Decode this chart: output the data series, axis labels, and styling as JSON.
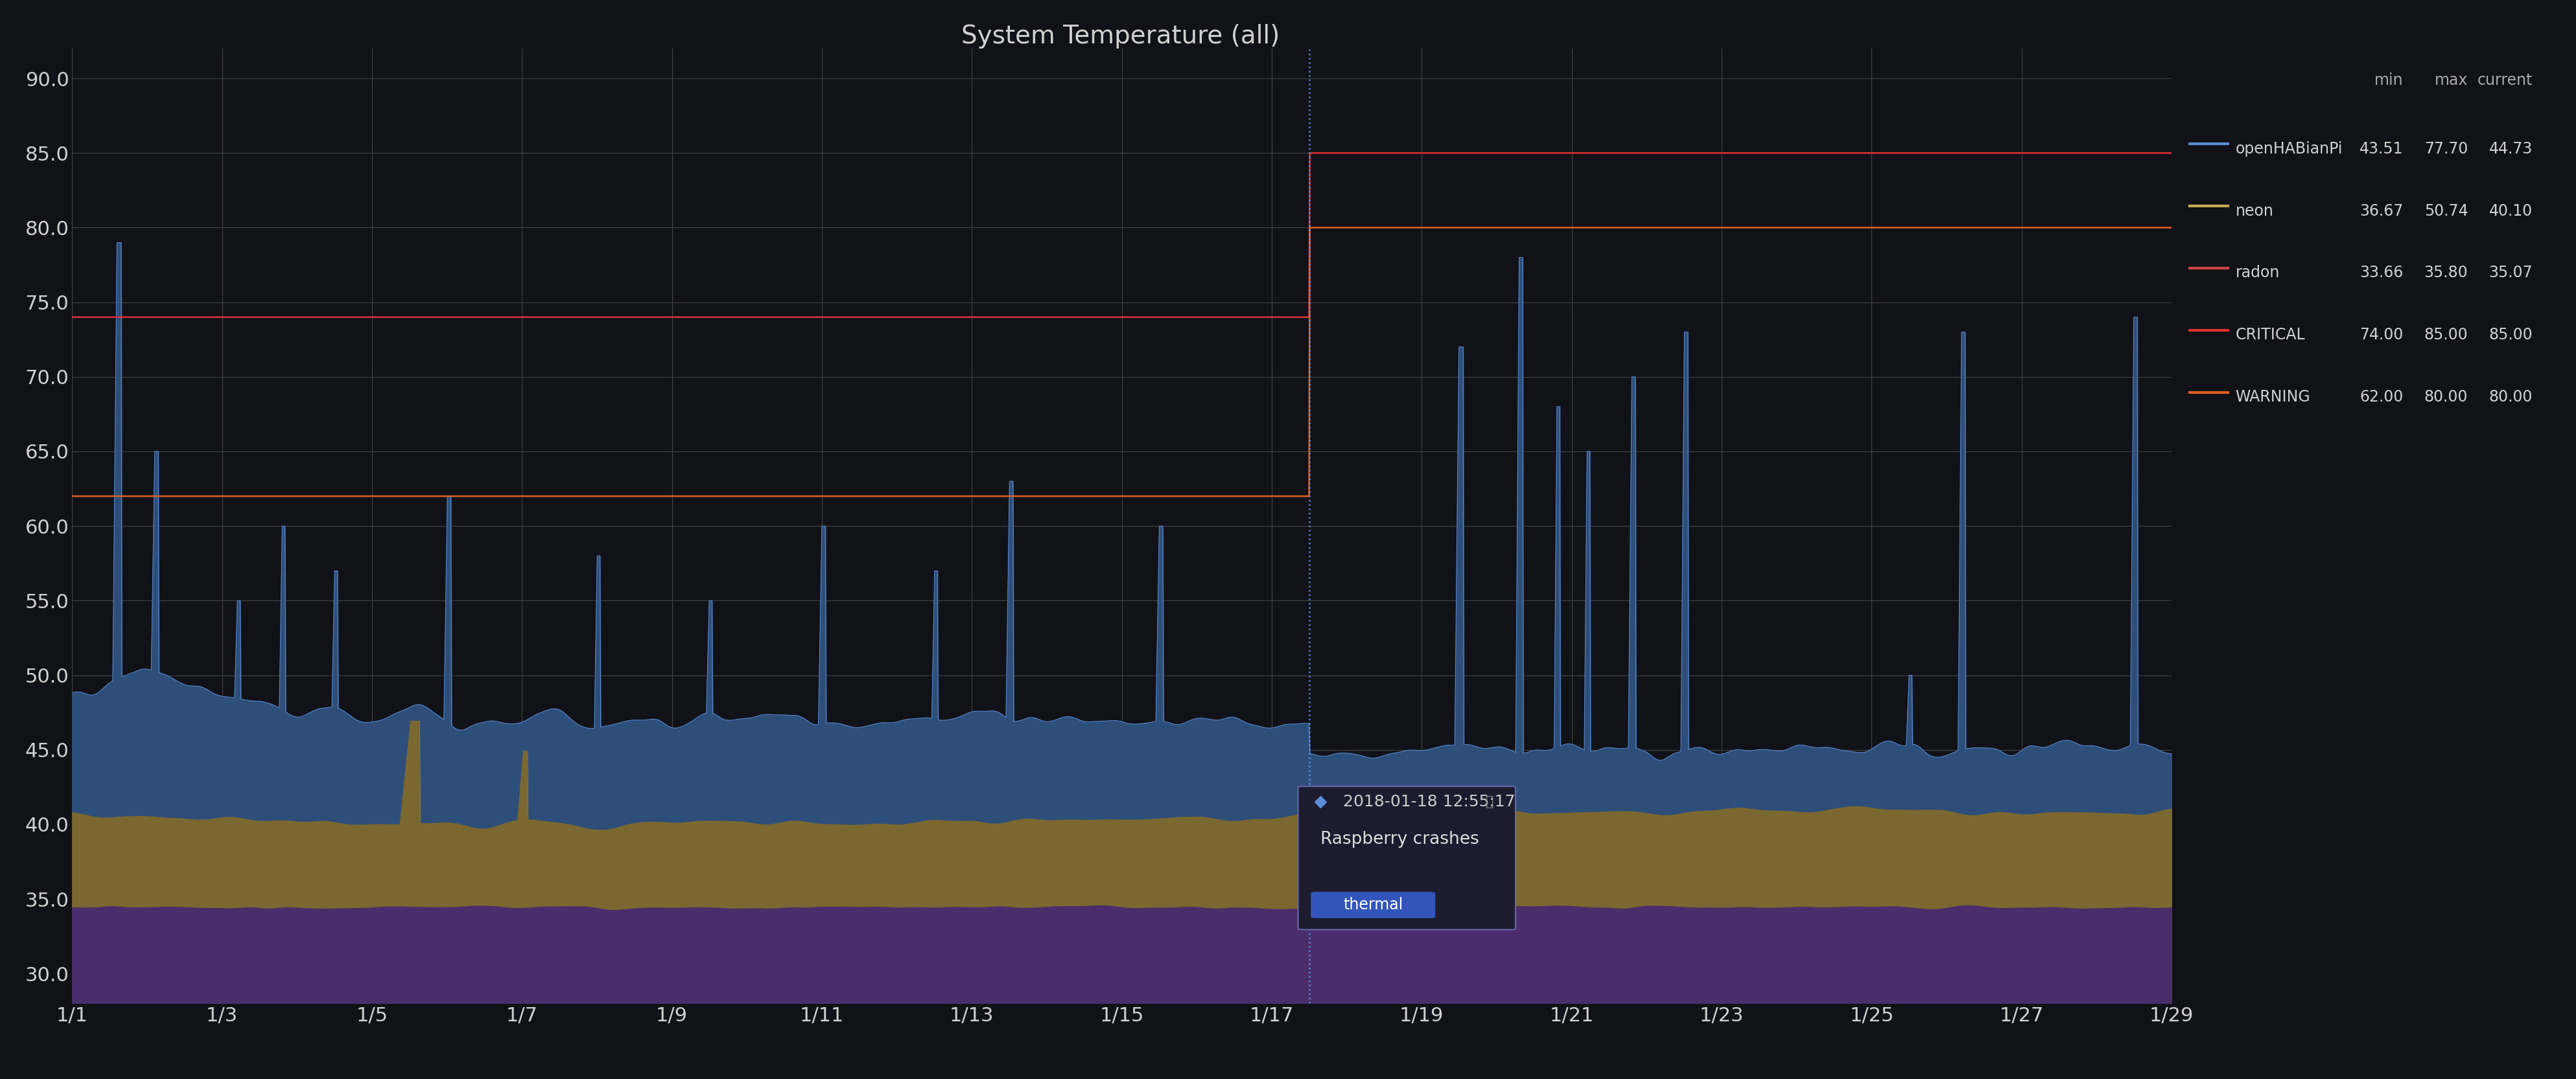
{
  "title": "System Temperature (all)",
  "bg_color": "#111217",
  "plot_bg_color": "#111217",
  "grid_color": "#444444",
  "text_color": "#d0d0d0",
  "ylim": [
    28,
    92
  ],
  "yticks": [
    30.0,
    35.0,
    40.0,
    45.0,
    50.0,
    55.0,
    60.0,
    65.0,
    70.0,
    75.0,
    80.0,
    85.0,
    90.0
  ],
  "xlim": [
    0,
    28
  ],
  "xtick_labels": [
    "1/1",
    "1/3",
    "1/5",
    "1/7",
    "1/9",
    "1/11",
    "1/13",
    "1/15",
    "1/17",
    "1/19",
    "1/21",
    "1/23",
    "1/25",
    "1/27",
    "1/29"
  ],
  "xtick_positions": [
    0,
    2,
    4,
    6,
    8,
    10,
    12,
    14,
    16,
    18,
    20,
    22,
    24,
    26,
    28
  ],
  "vline_x": 16.5,
  "vline_color": "#5599ff",
  "critical_level_before": 74.0,
  "critical_level_after": 85.0,
  "warning_level_before": 62.0,
  "warning_level_after": 80.0,
  "critical_color": "#e03030",
  "warning_color": "#e06020",
  "openhabianpi_color": "#5b8dd9",
  "openhabianpi_fill": "#3a5a9a",
  "neon_color": "#c8aa50",
  "neon_fill": "#8a7030",
  "radon_color": "#8060b0",
  "radon_fill": "#503070",
  "legend_entries": [
    {
      "name": "openHABianPi",
      "color": "#5b8dd9",
      "min": "43.51",
      "max": "77.70",
      "current": "44.73"
    },
    {
      "name": "neon",
      "color": "#c8aa50",
      "min": "36.67",
      "max": "50.74",
      "current": "40.10"
    },
    {
      "name": "radon",
      "color": "#cc4444",
      "min": "33.66",
      "max": "35.80",
      "current": "35.07"
    },
    {
      "name": "CRITICAL",
      "color": "#e03030",
      "min": "74.00",
      "max": "85.00",
      "current": "85.00"
    },
    {
      "name": "WARNING",
      "color": "#e06020",
      "min": "62.00",
      "max": "80.00",
      "current": "80.00"
    }
  ],
  "tooltip_date": "2018-01-18 12:55:17",
  "tooltip_label": "Raspberry crashes",
  "tooltip_tag": "thermal"
}
